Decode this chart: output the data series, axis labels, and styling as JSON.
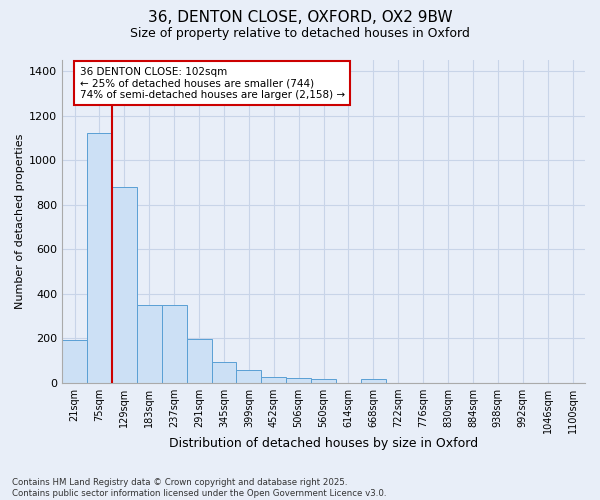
{
  "title_line1": "36, DENTON CLOSE, OXFORD, OX2 9BW",
  "title_line2": "Size of property relative to detached houses in Oxford",
  "xlabel": "Distribution of detached houses by size in Oxford",
  "ylabel": "Number of detached properties",
  "categories": [
    "21sqm",
    "75sqm",
    "129sqm",
    "183sqm",
    "237sqm",
    "291sqm",
    "345sqm",
    "399sqm",
    "452sqm",
    "506sqm",
    "560sqm",
    "614sqm",
    "668sqm",
    "722sqm",
    "776sqm",
    "830sqm",
    "884sqm",
    "938sqm",
    "992sqm",
    "1046sqm",
    "1100sqm"
  ],
  "values": [
    193,
    1120,
    880,
    350,
    350,
    195,
    93,
    57,
    25,
    20,
    15,
    0,
    15,
    0,
    0,
    0,
    0,
    0,
    0,
    0,
    0
  ],
  "bar_color": "#cce0f5",
  "bar_edge_color": "#5a9fd4",
  "grid_color": "#c8d4e8",
  "background_color": "#e8eef8",
  "vline_x": 1.5,
  "vline_color": "#cc0000",
  "annotation_text": "36 DENTON CLOSE: 102sqm\n← 25% of detached houses are smaller (744)\n74% of semi-detached houses are larger (2,158) →",
  "annotation_box_color": "#cc0000",
  "annotation_bg": "#ffffff",
  "footer_line1": "Contains HM Land Registry data © Crown copyright and database right 2025.",
  "footer_line2": "Contains public sector information licensed under the Open Government Licence v3.0.",
  "ylim": [
    0,
    1450
  ],
  "yticks": [
    0,
    200,
    400,
    600,
    800,
    1000,
    1200,
    1400
  ]
}
